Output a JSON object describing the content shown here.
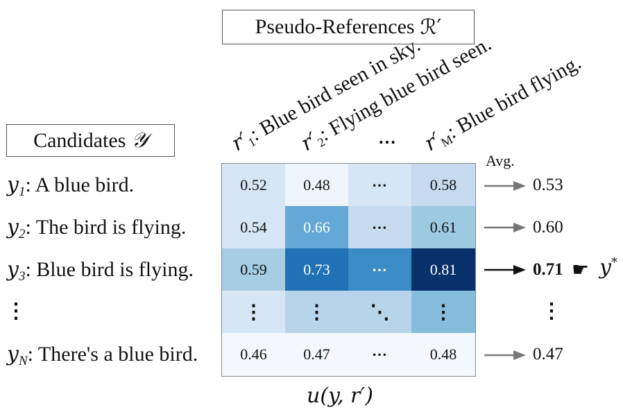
{
  "pseudo_refs_box": {
    "label": "Pseudo-References",
    "symbol": "ℛ′"
  },
  "candidates_box": {
    "label": "Candidates",
    "symbol": "𝒴"
  },
  "references": [
    {
      "var": "r′",
      "sub": "1",
      "text": ": Blue bird seen in sky."
    },
    {
      "var": "r′",
      "sub": "2",
      "text": ": Flying blue bird seen."
    },
    {
      "var": "r′",
      "sub": "M",
      "text": ": Blue bird flying."
    }
  ],
  "ellipsis": "⋯",
  "vertical_ellipsis": "⋮",
  "diagonal_ellipsis": "⋱",
  "candidates": [
    {
      "var": "y",
      "sub": "1",
      "text": ": A blue bird."
    },
    {
      "var": "y",
      "sub": "2",
      "text": ": The bird is flying."
    },
    {
      "var": "y",
      "sub": "3",
      "text": ": Blue bird is flying."
    },
    {
      "var": "y",
      "sub": "N",
      "text": ": There's a blue bird."
    }
  ],
  "matrix": [
    [
      "0.52",
      "0.48",
      "⋯",
      "0.58"
    ],
    [
      "0.54",
      "0.66",
      "⋯",
      "0.61"
    ],
    [
      "0.59",
      "0.73",
      "⋯",
      "0.81"
    ],
    [
      "⋮",
      "⋮",
      "⋱",
      "⋮"
    ],
    [
      "0.46",
      "0.47",
      "⋯",
      "0.48"
    ]
  ],
  "cell_colors": [
    [
      "#d6e6f4",
      "#eef5fc",
      "#d6e6f4",
      "#c6dbef"
    ],
    [
      "#d6e6f4",
      "#64a9d5",
      "#c6dbef",
      "#9ecae1"
    ],
    [
      "#a6cde4",
      "#2171b5",
      "#3b8bc4",
      "#08306b"
    ],
    [
      "#d6e6f4",
      "#b7d5ea",
      "#b7d5ea",
      "#86bddd"
    ],
    [
      "#f3f8fe",
      "#f3f8fe",
      "#f3f8fe",
      "#f3f8fe"
    ]
  ],
  "avg_label": "Avg.",
  "averages": [
    "0.53",
    "0.60",
    "0.71",
    "⋮",
    "0.47"
  ],
  "best_marker": "y",
  "best_marker_sup": "*",
  "pointer_icon": "pointing-hand-icon",
  "utility_label": "u(y, r′)"
}
